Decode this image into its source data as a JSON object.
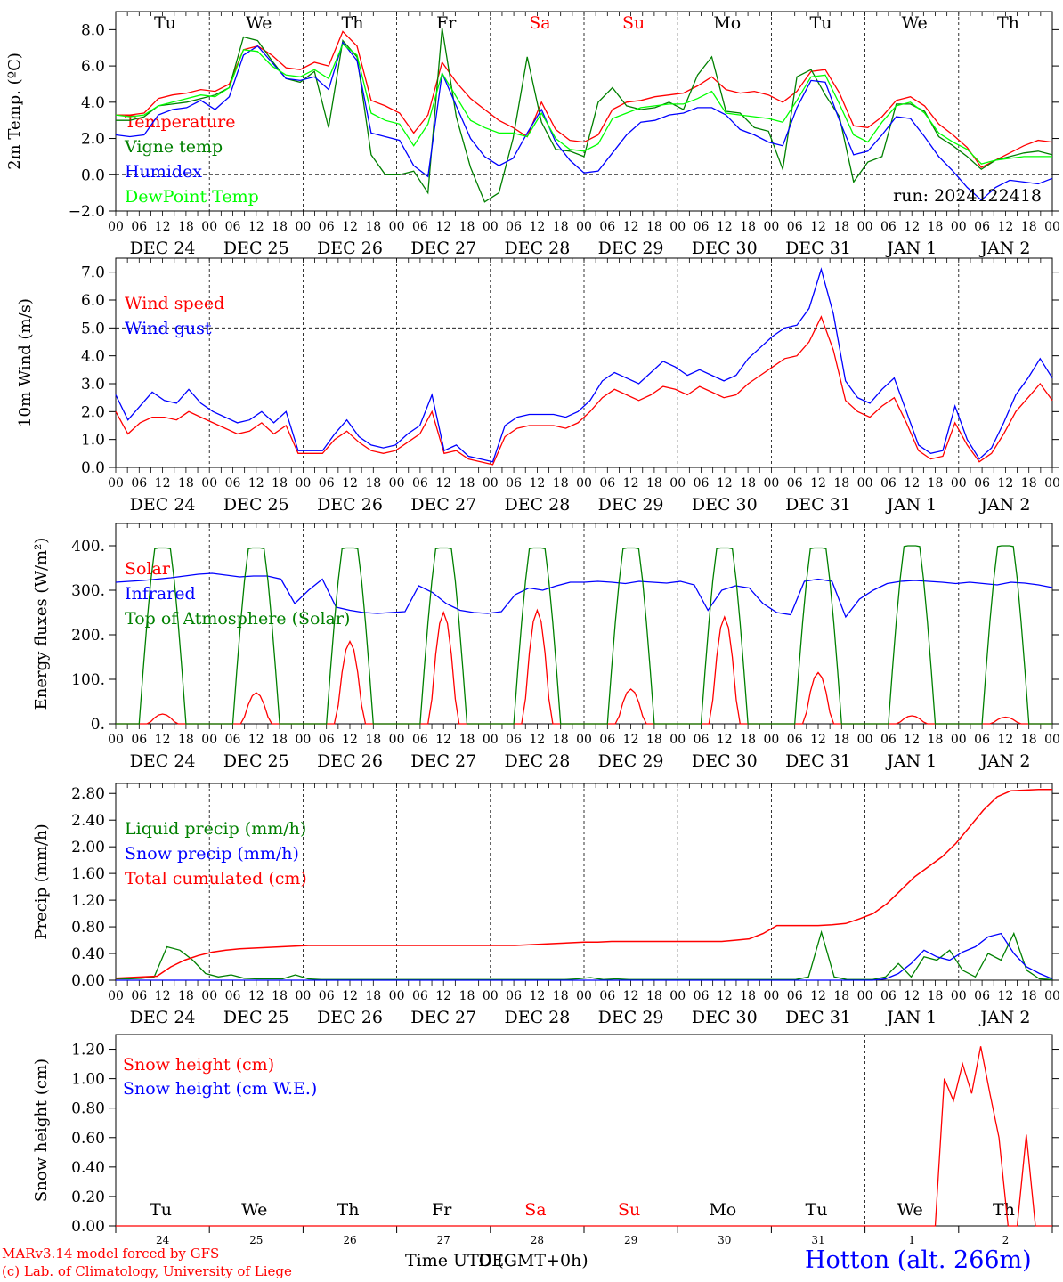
{
  "chart_data": [
    {
      "type": "line",
      "ylabel": "2m Temp. (ºC)",
      "ylim": [
        -2,
        9
      ],
      "yticks": [
        -2,
        0,
        2,
        4,
        6,
        8
      ],
      "ytick_labels": [
        "−2.0",
        "0.0",
        "2.0",
        "4.0",
        "6.0",
        "8.0"
      ],
      "ref_line": 0,
      "day_labels": [
        "Tu",
        "We",
        "Th",
        "Fr",
        "Sa",
        "Su",
        "Mo",
        "Tu",
        "We",
        "Th"
      ],
      "annotation": "run: 2024122418",
      "series": [
        {
          "name": "Temperature",
          "color": "#ff0000",
          "values": [
            3.3,
            3.3,
            3.4,
            4.2,
            4.4,
            4.5,
            4.7,
            4.6,
            5.0,
            6.9,
            7.1,
            6.6,
            5.9,
            5.8,
            6.2,
            6.0,
            7.9,
            7.1,
            4.1,
            3.8,
            3.4,
            2.3,
            3.3,
            6.2,
            5.1,
            4.2,
            3.6,
            3.0,
            2.6,
            2.1,
            4.0,
            2.5,
            1.9,
            1.8,
            2.2,
            3.6,
            4.0,
            4.1,
            4.3,
            4.4,
            4.5,
            4.9,
            5.4,
            4.7,
            4.5,
            4.6,
            4.4,
            4.0,
            4.6,
            5.7,
            5.8,
            4.5,
            2.7,
            2.6,
            3.2,
            4.1,
            4.3,
            3.8,
            2.8,
            2.2,
            1.5,
            0.4,
            0.8,
            1.2,
            1.6,
            1.9,
            1.8
          ]
        },
        {
          "name": "Vigne temp",
          "color": "#008000",
          "values": [
            3.0,
            3.0,
            3.2,
            3.8,
            3.9,
            4.0,
            4.2,
            4.4,
            4.8,
            7.6,
            7.4,
            6.3,
            5.3,
            5.1,
            5.7,
            2.6,
            7.4,
            6.5,
            1.1,
            0.0,
            0.0,
            0.2,
            -1.0,
            8.1,
            3.2,
            0.4,
            -1.5,
            -1.0,
            2.0,
            6.5,
            2.9,
            1.4,
            1.3,
            1.0,
            4.0,
            4.8,
            3.8,
            3.6,
            3.7,
            4.0,
            3.6,
            5.5,
            6.5,
            3.5,
            3.4,
            2.6,
            2.4,
            0.3,
            5.4,
            5.8,
            4.4,
            3.2,
            -0.4,
            0.7,
            1.0,
            3.9,
            3.9,
            3.5,
            2.1,
            1.6,
            1.0,
            0.3,
            0.8,
            1.0,
            1.2,
            1.3,
            1.1
          ]
        },
        {
          "name": "Humidex",
          "color": "#0000ff",
          "values": [
            2.2,
            2.1,
            2.2,
            3.3,
            3.6,
            3.7,
            4.1,
            3.6,
            4.3,
            6.6,
            7.1,
            6.2,
            5.3,
            5.2,
            5.4,
            4.7,
            7.3,
            6.3,
            2.3,
            2.1,
            1.9,
            0.5,
            -0.1,
            5.6,
            3.8,
            2.0,
            1.0,
            0.5,
            0.9,
            2.3,
            3.6,
            1.8,
            0.8,
            0.1,
            0.2,
            1.2,
            2.2,
            2.9,
            3.0,
            3.3,
            3.4,
            3.7,
            3.7,
            3.3,
            2.5,
            2.2,
            1.8,
            1.6,
            3.7,
            5.2,
            5.1,
            3.0,
            1.1,
            1.3,
            2.2,
            3.2,
            3.1,
            2.1,
            1.0,
            0.2,
            -0.7,
            -1.4,
            -0.7,
            -0.3,
            -0.4,
            -0.5,
            -0.2
          ]
        },
        {
          "name": "DewPoint Temp",
          "color": "#00ff00",
          "values": [
            3.3,
            3.2,
            3.3,
            3.8,
            4.0,
            4.2,
            4.4,
            4.3,
            4.8,
            6.9,
            6.8,
            6.0,
            5.5,
            5.4,
            5.8,
            5.3,
            7.2,
            6.6,
            3.4,
            3.0,
            2.8,
            1.6,
            2.8,
            5.6,
            4.3,
            3.0,
            2.6,
            2.3,
            2.3,
            2.1,
            3.4,
            2.0,
            1.4,
            1.3,
            1.7,
            3.1,
            3.4,
            3.7,
            3.8,
            3.9,
            3.9,
            4.2,
            4.6,
            3.4,
            3.3,
            3.2,
            3.1,
            2.9,
            4.1,
            5.4,
            5.5,
            3.9,
            2.2,
            1.8,
            2.9,
            3.8,
            4.0,
            3.4,
            2.3,
            1.8,
            1.4,
            0.6,
            0.8,
            0.9,
            1.0,
            1.0,
            1.0
          ]
        }
      ]
    },
    {
      "type": "line",
      "ylabel": "10m Wind (m/s)",
      "ylim": [
        0,
        7.5
      ],
      "yticks": [
        0,
        1,
        2,
        3,
        4,
        5,
        6,
        7
      ],
      "ytick_labels": [
        "0.0",
        "1.0",
        "2.0",
        "3.0",
        "4.0",
        "5.0",
        "6.0",
        "7.0"
      ],
      "ref_line": 5,
      "series": [
        {
          "name": "Wind speed",
          "color": "#ff0000",
          "values": [
            2.0,
            1.2,
            1.6,
            1.8,
            1.8,
            1.7,
            2.0,
            1.8,
            1.6,
            1.4,
            1.2,
            1.3,
            1.6,
            1.2,
            1.5,
            0.5,
            0.5,
            0.5,
            1.0,
            1.3,
            0.9,
            0.6,
            0.5,
            0.6,
            0.9,
            1.2,
            2.0,
            0.5,
            0.6,
            0.3,
            0.2,
            0.1,
            1.1,
            1.4,
            1.5,
            1.5,
            1.5,
            1.4,
            1.6,
            2.0,
            2.5,
            2.8,
            2.6,
            2.4,
            2.6,
            2.9,
            2.8,
            2.6,
            2.9,
            2.7,
            2.5,
            2.6,
            3.0,
            3.3,
            3.6,
            3.9,
            4.0,
            4.5,
            5.4,
            4.2,
            2.4,
            2.0,
            1.8,
            2.2,
            2.5,
            1.6,
            0.6,
            0.3,
            0.4,
            1.6,
            0.8,
            0.2,
            0.5,
            1.2,
            2.0,
            2.5,
            3.0,
            2.4
          ]
        },
        {
          "name": "Wind gust",
          "color": "#0000ff",
          "values": [
            2.6,
            1.7,
            2.2,
            2.7,
            2.4,
            2.3,
            2.8,
            2.3,
            2.0,
            1.8,
            1.6,
            1.7,
            2.0,
            1.6,
            2.0,
            0.6,
            0.6,
            0.6,
            1.2,
            1.7,
            1.1,
            0.8,
            0.7,
            0.8,
            1.2,
            1.5,
            2.6,
            0.6,
            0.8,
            0.4,
            0.3,
            0.2,
            1.5,
            1.8,
            1.9,
            1.9,
            1.9,
            1.8,
            2.0,
            2.4,
            3.1,
            3.4,
            3.2,
            3.0,
            3.4,
            3.8,
            3.6,
            3.3,
            3.5,
            3.3,
            3.1,
            3.3,
            3.9,
            4.3,
            4.7,
            5.0,
            5.1,
            5.7,
            7.1,
            5.5,
            3.1,
            2.5,
            2.3,
            2.8,
            3.2,
            2.0,
            0.8,
            0.5,
            0.6,
            2.2,
            1.0,
            0.3,
            0.7,
            1.6,
            2.6,
            3.2,
            3.9,
            3.2
          ]
        }
      ]
    },
    {
      "type": "line",
      "ylabel": "Energy fluxes (W/m²)",
      "ylim": [
        0,
        450
      ],
      "yticks": [
        0,
        100,
        200,
        300,
        400
      ],
      "ytick_labels": [
        "0.",
        "100.",
        "200.",
        "300.",
        "400."
      ],
      "series": [
        {
          "name": "Solar",
          "color": "#ff0000",
          "peaks": [
            22,
            70,
            185,
            250,
            255,
            78,
            240,
            115,
            18,
            15
          ]
        },
        {
          "name": "Infrared",
          "color": "#0000ff",
          "values": [
            318,
            320,
            322,
            325,
            328,
            332,
            336,
            338,
            334,
            330,
            332,
            332,
            325,
            270,
            300,
            325,
            262,
            255,
            250,
            248,
            250,
            252,
            310,
            295,
            270,
            255,
            250,
            248,
            252,
            290,
            305,
            300,
            310,
            318,
            318,
            320,
            318,
            315,
            320,
            318,
            316,
            320,
            312,
            255,
            300,
            310,
            305,
            270,
            250,
            245,
            320,
            325,
            320,
            240,
            280,
            300,
            315,
            320,
            322,
            320,
            318,
            315,
            318,
            315,
            312,
            318,
            316,
            312,
            306
          ]
        },
        {
          "name": "Top of Atmosphere (Solar)",
          "color": "#008000",
          "peaks": [
            395,
            395,
            395,
            395,
            395,
            395,
            395,
            395,
            400,
            400
          ]
        }
      ]
    },
    {
      "type": "line",
      "ylabel": "Precip (mm/h)",
      "ylim": [
        0,
        2.95
      ],
      "yticks": [
        0,
        0.4,
        0.8,
        1.2,
        1.6,
        2.0,
        2.4,
        2.8
      ],
      "ytick_labels": [
        "0.00",
        "0.40",
        "0.80",
        "1.20",
        "1.60",
        "2.00",
        "2.40",
        "2.80"
      ],
      "series": [
        {
          "name": "Liquid precip (mm/h)",
          "color": "#008000",
          "values": [
            0.02,
            0.02,
            0.03,
            0.05,
            0.5,
            0.45,
            0.3,
            0.1,
            0.05,
            0.08,
            0.03,
            0.02,
            0.02,
            0.02,
            0.08,
            0.02,
            0.01,
            0.01,
            0.01,
            0.01,
            0.01,
            0.01,
            0.01,
            0.01,
            0.01,
            0.01,
            0.01,
            0.01,
            0.01,
            0.01,
            0.01,
            0.01,
            0.01,
            0.01,
            0.01,
            0.01,
            0.02,
            0.04,
            0.01,
            0.02,
            0.01,
            0.01,
            0.01,
            0.01,
            0.01,
            0.01,
            0.01,
            0.01,
            0.01,
            0.01,
            0.01,
            0.01,
            0.01,
            0.01,
            0.05,
            0.72,
            0.05,
            0.01,
            0.01,
            0.01,
            0.05,
            0.25,
            0.05,
            0.35,
            0.3,
            0.45,
            0.15,
            0.05,
            0.4,
            0.3,
            0.7,
            0.15,
            0.02,
            0.01
          ]
        },
        {
          "name": "Snow precip (mm/h)",
          "color": "#0000ff",
          "values": [
            0.0,
            0.0,
            0.0,
            0.0,
            0.0,
            0.0,
            0.0,
            0.0,
            0.0,
            0.0,
            0.0,
            0.0,
            0.0,
            0.0,
            0.0,
            0.0,
            0.0,
            0.0,
            0.0,
            0.0,
            0.0,
            0.0,
            0.0,
            0.0,
            0.0,
            0.0,
            0.0,
            0.0,
            0.0,
            0.0,
            0.0,
            0.0,
            0.0,
            0.0,
            0.0,
            0.0,
            0.0,
            0.0,
            0.0,
            0.0,
            0.0,
            0.0,
            0.0,
            0.0,
            0.0,
            0.0,
            0.0,
            0.0,
            0.0,
            0.0,
            0.0,
            0.0,
            0.0,
            0.0,
            0.0,
            0.0,
            0.0,
            0.0,
            0.0,
            0.0,
            0.02,
            0.1,
            0.25,
            0.45,
            0.35,
            0.3,
            0.42,
            0.5,
            0.65,
            0.7,
            0.4,
            0.2,
            0.1,
            0.02
          ]
        },
        {
          "name": "Total cumulated (cm)",
          "color": "#ff0000",
          "values": [
            0.03,
            0.04,
            0.05,
            0.06,
            0.2,
            0.3,
            0.37,
            0.42,
            0.45,
            0.47,
            0.48,
            0.49,
            0.5,
            0.51,
            0.52,
            0.52,
            0.52,
            0.52,
            0.52,
            0.52,
            0.52,
            0.52,
            0.52,
            0.52,
            0.52,
            0.52,
            0.52,
            0.52,
            0.52,
            0.52,
            0.53,
            0.54,
            0.55,
            0.56,
            0.57,
            0.57,
            0.58,
            0.58,
            0.58,
            0.58,
            0.58,
            0.58,
            0.58,
            0.58,
            0.58,
            0.6,
            0.62,
            0.7,
            0.82,
            0.82,
            0.82,
            0.82,
            0.83,
            0.85,
            0.92,
            1.0,
            1.15,
            1.35,
            1.55,
            1.7,
            1.85,
            2.05,
            2.3,
            2.55,
            2.75,
            2.84,
            2.85,
            2.86,
            2.86
          ]
        }
      ]
    },
    {
      "type": "line",
      "ylabel": "Snow height (cm)",
      "ylim": [
        0,
        1.3
      ],
      "yticks": [
        0,
        0.2,
        0.4,
        0.6,
        0.8,
        1.0,
        1.2
      ],
      "ytick_labels": [
        "0.00",
        "0.20",
        "0.40",
        "0.60",
        "0.80",
        "1.00",
        "1.20"
      ],
      "day_labels": [
        "Tu",
        "We",
        "Th",
        "Fr",
        "Sa",
        "Su",
        "Mo",
        "Tu",
        "We",
        "Th"
      ],
      "day_numbers": [
        "24",
        "25",
        "26",
        "27",
        "28",
        "29",
        "30",
        "31",
        "1",
        "2"
      ],
      "series": [
        {
          "name": "Snow height (cm)",
          "color": "#ff0000",
          "values": [
            0.0,
            1.0,
            0.85,
            1.1,
            0.9,
            1.22,
            0.9,
            0.6,
            0.0,
            0.0,
            0.62,
            0.0,
            0.0
          ]
        },
        {
          "name": "Snow height (cm W.E.)",
          "color": "#0000ff",
          "values": []
        }
      ]
    }
  ],
  "x_axis": {
    "hour_labels": [
      "00",
      "06",
      "12",
      "18"
    ],
    "final_hour_label": "00",
    "date_labels": [
      "DEC 24",
      "DEC 25",
      "DEC 26",
      "DEC 27",
      "DEC 28",
      "DEC 29",
      "DEC 30",
      "DEC 31",
      "JAN  1",
      "JAN  2"
    ]
  },
  "footer": {
    "credit_line1": "MARv3.14 model forced by GFS",
    "credit_line2": "(c) Lab. of Climatology, University of Liege",
    "xlabel": "Time UTC (GMT+0h)",
    "xlabel_overlay": "DEC",
    "station": "Hotton (alt. 266m)"
  },
  "colors": {
    "weekend": "#ff0000",
    "axis": "#000000",
    "text": "#000000",
    "credit": "#ff0000",
    "station": "#0000ff"
  }
}
